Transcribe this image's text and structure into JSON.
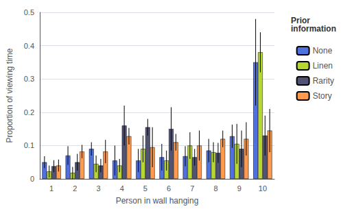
{
  "chart_data": {
    "type": "bar",
    "xlabel": "Person in wall hanging",
    "ylabel": "Proportion of viewing time",
    "categories": [
      "1",
      "2",
      "3",
      "4",
      "5",
      "6",
      "7",
      "8",
      "9",
      "10"
    ],
    "series": [
      {
        "name": "None",
        "values": [
          0.05,
          0.07,
          0.09,
          0.055,
          0.055,
          0.065,
          0.068,
          0.085,
          0.128,
          0.35
        ],
        "errors": [
          0.018,
          0.028,
          0.02,
          0.045,
          0.035,
          0.04,
          0.03,
          0.035,
          0.035,
          0.13
        ]
      },
      {
        "name": "Linen",
        "values": [
          0.022,
          0.018,
          0.045,
          0.04,
          0.09,
          0.055,
          0.1,
          0.08,
          0.105,
          0.38
        ],
        "errors": [
          0.018,
          0.018,
          0.025,
          0.02,
          0.04,
          0.03,
          0.04,
          0.03,
          0.06,
          0.06
        ]
      },
      {
        "name": "Rarity",
        "values": [
          0.038,
          0.05,
          0.04,
          0.16,
          0.155,
          0.15,
          0.065,
          0.078,
          0.09,
          0.13
        ],
        "errors": [
          0.018,
          0.025,
          0.02,
          0.06,
          0.025,
          0.065,
          0.025,
          0.03,
          0.055,
          0.06
        ]
      },
      {
        "name": "Story",
        "values": [
          0.04,
          0.082,
          0.082,
          0.128,
          0.095,
          0.11,
          0.1,
          0.12,
          0.12,
          0.145
        ],
        "errors": [
          0.018,
          0.02,
          0.035,
          0.025,
          0.06,
          0.025,
          0.045,
          0.025,
          0.05,
          0.065
        ]
      }
    ],
    "ylim": [
      0.0,
      0.5
    ],
    "yticks": [
      0.0,
      0.1,
      0.2,
      0.3,
      0.4,
      0.5
    ],
    "grid": true,
    "legend": "right",
    "legend_title": "Prior\ninformation"
  }
}
